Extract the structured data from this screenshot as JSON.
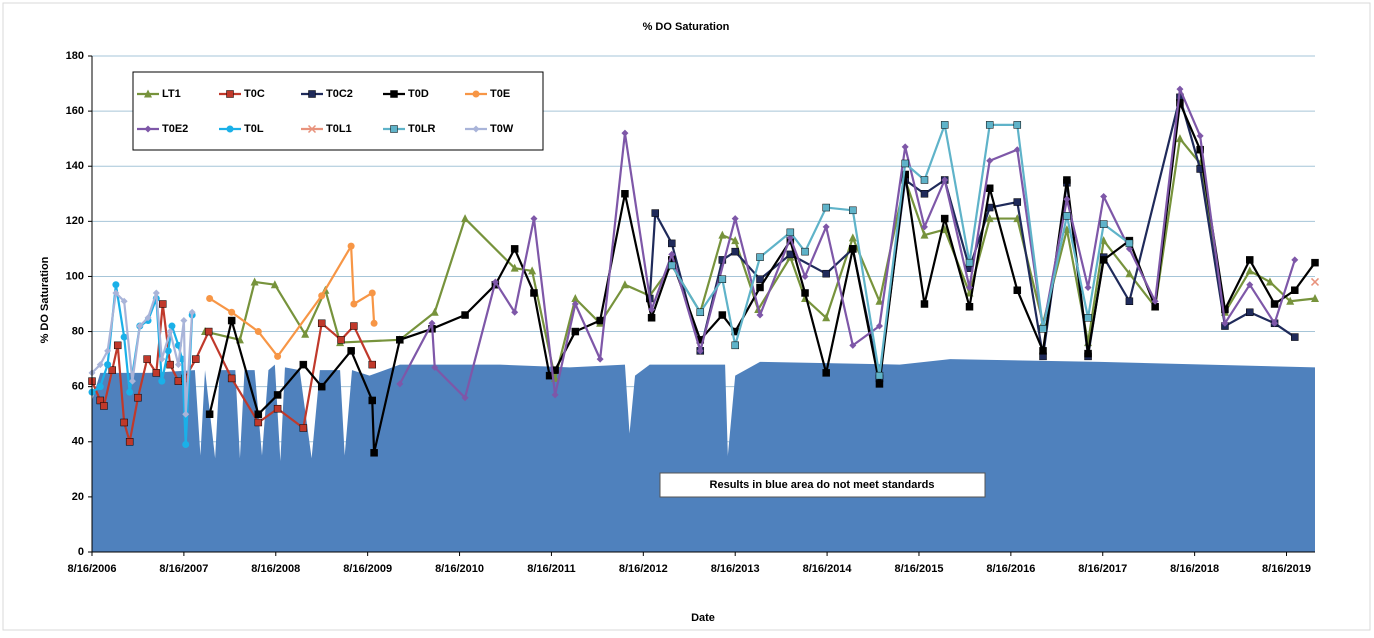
{
  "chart_data": {
    "type": "line",
    "title": "% DO Saturation",
    "x_label": "Date",
    "y_label": "% DO Saturation",
    "annotation": "Results in blue area do not meet standards",
    "xlim": [
      2006.62,
      2019.93
    ],
    "ylim": [
      0,
      180
    ],
    "yticks": [
      0,
      20,
      40,
      60,
      80,
      100,
      120,
      140,
      160,
      180
    ],
    "xticks": [
      {
        "value": 2006.62,
        "label": "8/16/2006"
      },
      {
        "value": 2007.62,
        "label": "8/16/2007"
      },
      {
        "value": 2008.62,
        "label": "8/16/2008"
      },
      {
        "value": 2009.62,
        "label": "8/16/2009"
      },
      {
        "value": 2010.62,
        "label": "8/16/2010"
      },
      {
        "value": 2011.62,
        "label": "8/16/2011"
      },
      {
        "value": 2012.62,
        "label": "8/16/2012"
      },
      {
        "value": 2013.62,
        "label": "8/16/2013"
      },
      {
        "value": 2014.62,
        "label": "8/16/2014"
      },
      {
        "value": 2015.62,
        "label": "8/16/2015"
      },
      {
        "value": 2016.62,
        "label": "8/16/2016"
      },
      {
        "value": 2017.62,
        "label": "8/16/2017"
      },
      {
        "value": 2018.62,
        "label": "8/16/2018"
      },
      {
        "value": 2019.62,
        "label": "8/16/2019"
      }
    ],
    "grid": true,
    "legend": "top-left",
    "area": {
      "color": "#4f81bd",
      "x": [
        2006.62,
        2006.71,
        2007.25,
        2007.74,
        2007.8,
        2007.85,
        2007.96,
        2008.01,
        2008.18,
        2008.23,
        2008.28,
        2008.39,
        2008.47,
        2008.54,
        2008.61,
        2008.67,
        2008.72,
        2008.88,
        2009.01,
        2009.1,
        2009.32,
        2009.37,
        2009.45,
        2009.64,
        2009.97,
        2011.06,
        2011.82,
        2012.42,
        2012.47,
        2012.53,
        2012.69,
        2013.24,
        2013.51,
        2013.54,
        2013.62,
        2013.89,
        2015.41,
        2015.96,
        2017.59,
        2019.93
      ],
      "values": [
        55,
        65,
        65,
        66,
        35,
        66,
        34,
        66,
        66,
        34,
        66,
        66,
        35,
        66,
        68,
        33,
        67,
        66,
        34,
        66,
        66,
        35,
        66,
        64,
        68,
        68,
        67,
        68,
        43,
        64,
        68,
        68,
        68,
        35,
        64,
        69,
        68,
        70,
        69,
        67
      ]
    },
    "series": [
      {
        "name": "LT1",
        "color": "#77933c",
        "marker": "triangle",
        "x": [
          2007.85,
          2008.23,
          2008.39,
          2008.61,
          2008.94,
          2009.16,
          2009.32,
          2009.97,
          2010.35,
          2010.68,
          2011.22,
          2011.41,
          2011.66,
          2011.88,
          2012.15,
          2012.42,
          2012.69,
          2012.93,
          2013.24,
          2013.48,
          2013.62,
          2013.87,
          2014.22,
          2014.38,
          2014.61,
          2014.9,
          2015.19,
          2015.47,
          2015.68,
          2015.9,
          2016.17,
          2016.39,
          2016.69,
          2016.97,
          2017.23,
          2017.46,
          2017.63,
          2017.91,
          2018.19,
          2018.46,
          2018.68,
          2018.95,
          2019.22,
          2019.44,
          2019.66,
          2019.93
        ],
        "values": [
          80,
          77,
          98,
          97,
          79,
          95,
          76,
          77,
          87,
          121,
          103,
          102,
          63,
          92,
          83,
          97,
          93,
          104,
          87,
          115,
          113,
          88,
          107,
          92,
          85,
          114,
          91,
          135,
          115,
          117,
          94,
          121,
          121,
          83,
          117,
          76,
          113,
          101,
          89,
          150,
          141,
          87,
          102,
          98,
          91,
          92
        ]
      },
      {
        "name": "T0C",
        "color": "#c0392b",
        "marker": "square",
        "x": [
          2006.62,
          2006.71,
          2006.75,
          2006.84,
          2006.9,
          2006.97,
          2007.03,
          2007.12,
          2007.22,
          2007.32,
          2007.39,
          2007.47,
          2007.56,
          2007.63,
          2007.75,
          2007.89,
          2008.14,
          2008.43,
          2008.64,
          2008.92,
          2009.12,
          2009.33,
          2009.47,
          2009.67
        ],
        "values": [
          62,
          55,
          53,
          66,
          75,
          47,
          40,
          56,
          70,
          65,
          90,
          68,
          62,
          63,
          70,
          80,
          63,
          47,
          52,
          45,
          83,
          77,
          82,
          68
        ]
      },
      {
        "name": "T0C2",
        "color": "#1f2a5a",
        "marker": "square",
        "x": [
          2012.69,
          2012.75,
          2012.93,
          2013.24,
          2013.48,
          2013.62,
          2013.89,
          2014.22,
          2014.61,
          2014.9,
          2015.19,
          2015.47,
          2015.68,
          2015.9,
          2016.17,
          2016.39,
          2016.69,
          2016.97,
          2017.23,
          2017.46,
          2017.63,
          2017.91,
          2018.46,
          2018.68,
          2018.95,
          2019.22,
          2019.49,
          2019.71
        ],
        "values": [
          92,
          123,
          112,
          73,
          106,
          109,
          99,
          108,
          101,
          110,
          63,
          135,
          130,
          135,
          103,
          125,
          127,
          71,
          134,
          71,
          107,
          91,
          165,
          139,
          82,
          87,
          83,
          78
        ]
      },
      {
        "name": "T0D",
        "color": "#000000",
        "marker": "square",
        "x": [
          2007.9,
          2008.14,
          2008.43,
          2008.64,
          2008.92,
          2009.12,
          2009.44,
          2009.67,
          2009.69,
          2009.97,
          2010.32,
          2010.68,
          2011.01,
          2011.22,
          2011.43,
          2011.6,
          2011.66,
          2011.88,
          2012.15,
          2012.42,
          2012.71,
          2012.93,
          2013.24,
          2013.48,
          2013.62,
          2013.89,
          2014.22,
          2014.38,
          2014.61,
          2014.9,
          2015.19,
          2015.47,
          2015.68,
          2015.9,
          2016.17,
          2016.39,
          2016.69,
          2016.97,
          2017.23,
          2017.46,
          2017.63,
          2017.91,
          2018.19,
          2018.46,
          2018.68,
          2018.95,
          2019.22,
          2019.49,
          2019.71,
          2019.93
        ],
        "values": [
          50,
          84,
          50,
          57,
          68,
          60,
          73,
          55,
          36,
          77,
          81,
          86,
          97,
          110,
          94,
          64,
          66,
          80,
          84,
          130,
          85,
          106,
          77,
          86,
          80,
          96,
          113,
          94,
          65,
          110,
          61,
          137,
          90,
          121,
          89,
          132,
          95,
          73,
          135,
          72,
          106,
          113,
          89,
          163,
          146,
          88,
          106,
          90,
          95,
          105
        ]
      },
      {
        "name": "T0E",
        "color": "#f79646",
        "marker": "circle",
        "x": [
          2007.9,
          2008.14,
          2008.43,
          2008.64,
          2009.12,
          2009.44,
          2009.47,
          2009.67,
          2009.69
        ],
        "values": [
          92,
          87,
          80,
          71,
          93,
          111,
          90,
          94,
          83
        ]
      },
      {
        "name": "T0E2",
        "color": "#7e57a8",
        "marker": "diamond",
        "x": [
          2009.97,
          2010.32,
          2010.35,
          2010.68,
          2011.01,
          2011.22,
          2011.43,
          2011.66,
          2011.88,
          2012.15,
          2012.42,
          2012.71,
          2012.93,
          2013.24,
          2013.62,
          2013.89,
          2014.22,
          2014.38,
          2014.61,
          2014.9,
          2015.19,
          2015.47,
          2015.68,
          2015.9,
          2016.17,
          2016.39,
          2016.69,
          2016.97,
          2017.23,
          2017.46,
          2017.63,
          2017.91,
          2018.19,
          2018.46,
          2018.68,
          2018.95,
          2019.22,
          2019.49,
          2019.71
        ],
        "values": [
          61,
          83,
          67,
          56,
          98,
          87,
          121,
          57,
          90,
          70,
          152,
          88,
          108,
          73,
          121,
          86,
          114,
          100,
          118,
          75,
          82,
          147,
          118,
          135,
          96,
          142,
          146,
          81,
          128,
          96,
          129,
          110,
          91,
          168,
          151,
          83,
          97,
          83,
          106
        ]
      },
      {
        "name": "T0L",
        "color": "#1ab0e8",
        "marker": "circle",
        "x": [
          2006.62,
          2006.71,
          2006.79,
          2006.88,
          2006.97,
          2007.03,
          2007.14,
          2007.23,
          2007.32,
          2007.38,
          2007.45,
          2007.49,
          2007.56,
          2007.6,
          2007.64,
          2007.71
        ],
        "values": [
          58,
          60,
          68,
          97,
          78,
          58,
          82,
          84,
          92,
          62,
          73,
          82,
          75,
          70,
          39,
          86
        ]
      },
      {
        "name": "T0L1",
        "color": "#e8927c",
        "marker": "x",
        "x": [
          2019.93
        ],
        "values": [
          98
        ]
      },
      {
        "name": "T0LR",
        "color": "#5fb3c9",
        "marker": "square",
        "x": [
          2012.93,
          2013.24,
          2013.48,
          2013.62,
          2013.89,
          2014.22,
          2014.38,
          2014.61,
          2014.9,
          2015.19,
          2015.47,
          2015.68,
          2015.9,
          2016.17,
          2016.39,
          2016.69,
          2016.97,
          2017.23,
          2017.46,
          2017.63,
          2017.91
        ],
        "values": [
          104,
          87,
          99,
          75,
          107,
          116,
          109,
          125,
          124,
          64,
          141,
          135,
          155,
          105,
          155,
          155,
          81,
          122,
          85,
          119,
          112
        ]
      },
      {
        "name": "T0W",
        "color": "#a9b4d9",
        "marker": "diamond",
        "x": [
          2006.62,
          2006.71,
          2006.79,
          2006.88,
          2006.97,
          2007.06,
          2007.14,
          2007.23,
          2007.32,
          2007.38,
          2007.47,
          2007.56,
          2007.62,
          2007.64,
          2007.71
        ],
        "values": [
          65,
          68,
          73,
          94,
          91,
          62,
          82,
          85,
          94,
          70,
          80,
          68,
          84,
          50,
          87
        ]
      }
    ]
  }
}
